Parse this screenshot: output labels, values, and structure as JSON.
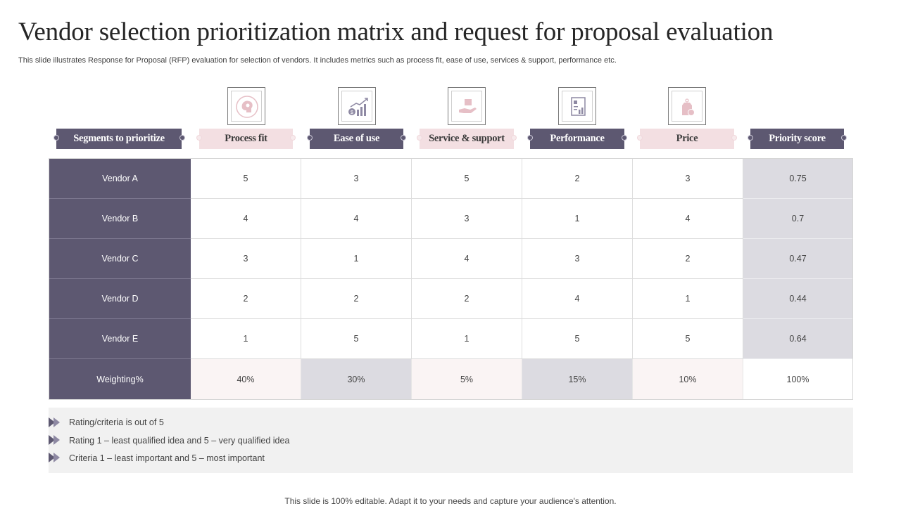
{
  "title": "Vendor selection prioritization matrix and request for proposal evaluation",
  "subtitle": "This slide illustrates Response for Proposal (RFP) evaluation for selection of vendors. It includes metrics such as process fit, ease of use, services & support, performance etc.",
  "columns": [
    {
      "label": "Segments to prioritize",
      "style": "dark",
      "icon": null
    },
    {
      "label": "Process fit",
      "style": "light",
      "icon": "brain-gear-icon"
    },
    {
      "label": "Ease of use",
      "style": "dark",
      "icon": "growth-chart-icon"
    },
    {
      "label": "Service & support",
      "style": "light",
      "icon": "hand-support-icon"
    },
    {
      "label": "Performance",
      "style": "dark",
      "icon": "performance-report-icon"
    },
    {
      "label": "Price",
      "style": "light",
      "icon": "price-tag-icon"
    },
    {
      "label": "Priority score",
      "style": "dark",
      "icon": null
    }
  ],
  "rows": [
    {
      "vendor": "Vendor A",
      "values": [
        "5",
        "3",
        "5",
        "2",
        "3"
      ],
      "score": "0.75"
    },
    {
      "vendor": "Vendor B",
      "values": [
        "4",
        "4",
        "3",
        "1",
        "4"
      ],
      "score": "0.7"
    },
    {
      "vendor": "Vendor C",
      "values": [
        "3",
        "1",
        "4",
        "3",
        "2"
      ],
      "score": "0.47"
    },
    {
      "vendor": "Vendor D",
      "values": [
        "2",
        "2",
        "2",
        "4",
        "1"
      ],
      "score": "0.44"
    },
    {
      "vendor": "Vendor E",
      "values": [
        "1",
        "5",
        "1",
        "5",
        "5"
      ],
      "score": "0.64"
    }
  ],
  "weighting": {
    "label": "Weighting%",
    "values": [
      "40%",
      "30%",
      "5%",
      "15%",
      "10%"
    ],
    "total": "100%"
  },
  "notes": [
    "Rating/criteria  is out of 5",
    "Rating  1 – least qualified  idea and  5 – very  qualified  idea",
    "Criteria  1 – least important  and  5 – most important"
  ],
  "footer": "This slide is 100% editable. Adapt it to your needs and capture your audience's attention.",
  "colors": {
    "dark": "#5d5871",
    "light": "#f3dfe2",
    "score_bg": "#dcdbe1",
    "icon_pink": "#e6bfc6",
    "icon_purple": "#8e89a3"
  }
}
